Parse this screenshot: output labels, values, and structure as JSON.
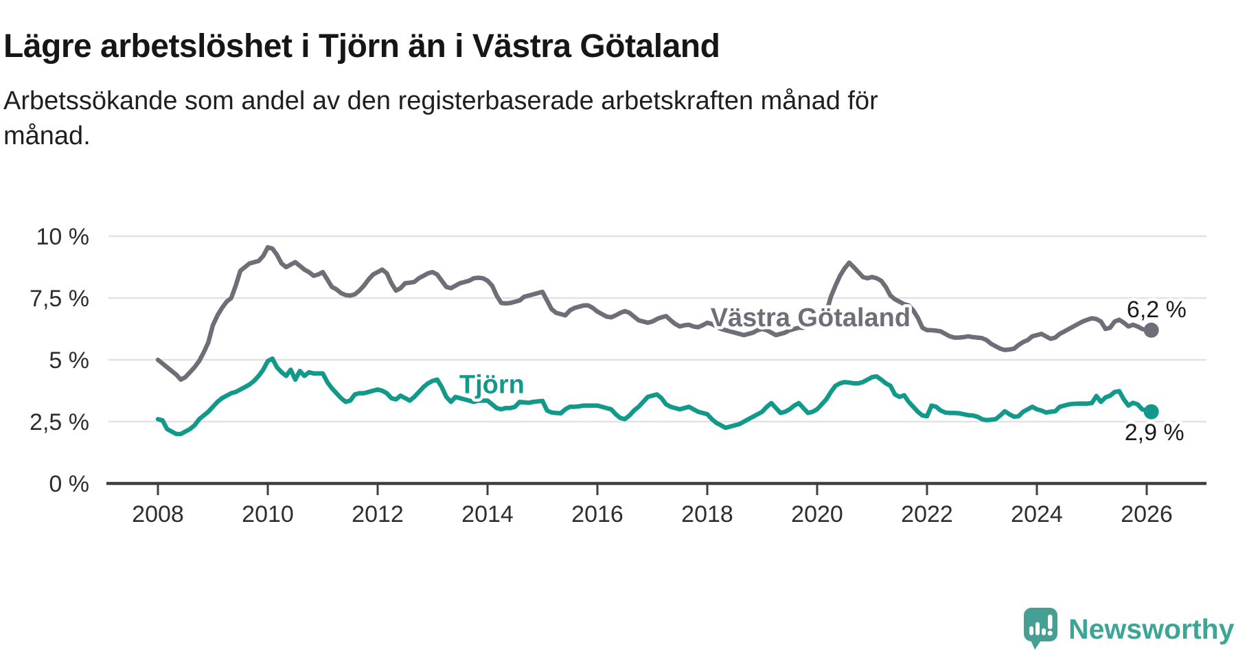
{
  "header": {
    "title": "Lägre arbetslöshet i Tjörn än i Västra Götaland",
    "subtitle_lines": [
      "Arbetssökande som andel av den registerbaserade arbetskraften månad för",
      "månad."
    ]
  },
  "branding": {
    "logo_text": "Newsworthy",
    "logo_color": "#45a093",
    "text_color": "#3ba596"
  },
  "chart_data": {
    "type": "line",
    "title": "Lägre arbetslöshet i Tjörn än i Västra Götaland",
    "x_start_year": 2008,
    "x_step": "month",
    "x_range": [
      2008.0,
      2026.17
    ],
    "ylim": [
      0,
      10
    ],
    "grid": true,
    "legend_position": "inline-labels",
    "colors": {
      "grid": "#e2e2e2",
      "axis": "#3f3f3f",
      "tick_text": "#2d2d2d"
    },
    "y_ticks": [
      {
        "v": 0,
        "label": "0 %"
      },
      {
        "v": 2.5,
        "label": "2,5 %"
      },
      {
        "v": 5,
        "label": "5 %"
      },
      {
        "v": 7.5,
        "label": "7,5 %"
      },
      {
        "v": 10,
        "label": "10 %"
      }
    ],
    "x_ticks": [
      2008,
      2010,
      2012,
      2014,
      2016,
      2018,
      2020,
      2022,
      2024,
      2026
    ],
    "series": [
      {
        "name": "Västra Götaland",
        "slug": "vastra-gotaland",
        "color": "#6e6e78",
        "end_value_label": "6,2 %",
        "values": [
          5.0,
          4.85,
          4.7,
          4.55,
          4.4,
          4.2,
          4.3,
          4.5,
          4.7,
          4.95,
          5.3,
          5.7,
          6.4,
          6.8,
          7.1,
          7.35,
          7.5,
          8.0,
          8.6,
          8.75,
          8.9,
          8.95,
          9.0,
          9.2,
          9.55,
          9.5,
          9.25,
          8.9,
          8.75,
          8.85,
          8.95,
          8.8,
          8.65,
          8.55,
          8.4,
          8.45,
          8.55,
          8.25,
          7.95,
          7.85,
          7.7,
          7.62,
          7.6,
          7.65,
          7.8,
          8.0,
          8.25,
          8.45,
          8.55,
          8.65,
          8.5,
          8.1,
          7.8,
          7.9,
          8.1,
          8.12,
          8.15,
          8.3,
          8.4,
          8.5,
          8.55,
          8.45,
          8.2,
          7.95,
          7.9,
          8.0,
          8.1,
          8.15,
          8.2,
          8.3,
          8.32,
          8.3,
          8.2,
          8.0,
          7.6,
          7.3,
          7.28,
          7.3,
          7.35,
          7.4,
          7.55,
          7.6,
          7.65,
          7.7,
          7.75,
          7.4,
          7.05,
          6.9,
          6.85,
          6.8,
          7.0,
          7.1,
          7.15,
          7.2,
          7.2,
          7.1,
          6.95,
          6.85,
          6.75,
          6.72,
          6.8,
          6.9,
          6.97,
          6.9,
          6.75,
          6.6,
          6.55,
          6.5,
          6.55,
          6.65,
          6.72,
          6.77,
          6.6,
          6.45,
          6.35,
          6.4,
          6.42,
          6.35,
          6.32,
          6.4,
          6.5,
          6.45,
          6.35,
          6.25,
          6.2,
          6.15,
          6.1,
          6.05,
          6.0,
          6.05,
          6.1,
          6.2,
          6.25,
          6.2,
          6.1,
          6.0,
          6.05,
          6.1,
          6.2,
          6.25,
          6.3,
          6.3,
          6.35,
          6.45,
          6.55,
          6.6,
          6.9,
          7.55,
          8.0,
          8.4,
          8.7,
          8.93,
          8.75,
          8.55,
          8.35,
          8.3,
          8.35,
          8.3,
          8.2,
          7.95,
          7.6,
          7.45,
          7.35,
          7.25,
          7.2,
          7.0,
          6.7,
          6.3,
          6.2,
          6.2,
          6.18,
          6.15,
          6.05,
          5.95,
          5.9,
          5.9,
          5.92,
          5.95,
          5.92,
          5.9,
          5.88,
          5.8,
          5.65,
          5.55,
          5.45,
          5.4,
          5.42,
          5.45,
          5.6,
          5.72,
          5.8,
          5.95,
          6.0,
          6.05,
          5.95,
          5.85,
          5.9,
          6.05,
          6.15,
          6.25,
          6.35,
          6.45,
          6.55,
          6.62,
          6.68,
          6.65,
          6.55,
          6.25,
          6.3,
          6.55,
          6.62,
          6.5,
          6.35,
          6.42,
          6.35,
          6.25,
          6.2,
          6.2
        ]
      },
      {
        "name": "Tjörn",
        "slug": "tjorn",
        "color": "#13998b",
        "end_value_label": "2,9 %",
        "values": [
          2.6,
          2.55,
          2.2,
          2.1,
          2.0,
          2.0,
          2.1,
          2.2,
          2.35,
          2.6,
          2.75,
          2.9,
          3.1,
          3.3,
          3.45,
          3.55,
          3.65,
          3.7,
          3.8,
          3.9,
          4.0,
          4.15,
          4.35,
          4.6,
          4.95,
          5.05,
          4.7,
          4.5,
          4.35,
          4.6,
          4.2,
          4.55,
          4.35,
          4.5,
          4.45,
          4.45,
          4.45,
          4.1,
          3.85,
          3.65,
          3.45,
          3.3,
          3.35,
          3.6,
          3.65,
          3.65,
          3.7,
          3.75,
          3.8,
          3.75,
          3.65,
          3.45,
          3.4,
          3.55,
          3.45,
          3.35,
          3.5,
          3.7,
          3.9,
          4.05,
          4.15,
          4.2,
          3.9,
          3.5,
          3.3,
          3.5,
          3.45,
          3.4,
          3.35,
          3.3,
          3.35,
          3.35,
          3.35,
          3.2,
          3.05,
          3.0,
          3.05,
          3.05,
          3.1,
          3.3,
          3.28,
          3.26,
          3.3,
          3.32,
          3.34,
          2.95,
          2.87,
          2.85,
          2.84,
          3.0,
          3.1,
          3.1,
          3.12,
          3.15,
          3.15,
          3.15,
          3.15,
          3.1,
          3.05,
          3.0,
          2.8,
          2.65,
          2.6,
          2.75,
          2.95,
          3.1,
          3.3,
          3.5,
          3.55,
          3.6,
          3.45,
          3.2,
          3.1,
          3.05,
          3.0,
          3.05,
          3.1,
          3.0,
          2.9,
          2.85,
          2.8,
          2.6,
          2.45,
          2.35,
          2.25,
          2.3,
          2.35,
          2.4,
          2.5,
          2.6,
          2.7,
          2.8,
          2.9,
          3.1,
          3.25,
          3.05,
          2.85,
          2.9,
          3.0,
          3.15,
          3.25,
          3.05,
          2.85,
          2.9,
          3.0,
          3.2,
          3.4,
          3.7,
          3.95,
          4.05,
          4.1,
          4.08,
          4.05,
          4.05,
          4.1,
          4.2,
          4.3,
          4.33,
          4.2,
          4.05,
          3.95,
          3.6,
          3.5,
          3.57,
          3.3,
          3.1,
          2.9,
          2.75,
          2.72,
          3.15,
          3.1,
          2.95,
          2.87,
          2.85,
          2.85,
          2.84,
          2.8,
          2.76,
          2.75,
          2.7,
          2.6,
          2.56,
          2.58,
          2.6,
          2.75,
          2.92,
          2.8,
          2.7,
          2.72,
          2.9,
          3.0,
          3.1,
          3.0,
          2.95,
          2.87,
          2.9,
          2.92,
          3.1,
          3.15,
          3.2,
          3.22,
          3.23,
          3.23,
          3.23,
          3.25,
          3.54,
          3.3,
          3.48,
          3.55,
          3.7,
          3.73,
          3.4,
          3.15,
          3.26,
          3.2,
          3.0,
          2.95,
          2.9
        ]
      }
    ],
    "labels": [
      {
        "name": "series-label-vastra-gotaland",
        "text": "Västra Götaland",
        "x": 2019.88,
        "y": 6.36,
        "color": "#6e6e78",
        "bold": true,
        "size": 38
      },
      {
        "name": "series-label-tjorn",
        "text": "Tjörn",
        "x": 2014.08,
        "y": 3.65,
        "color": "#13998b",
        "bold": true,
        "size": 38
      },
      {
        "name": "end-value-vastra-gotaland",
        "text": "6,2 %",
        "x": 2026.18,
        "y": 6.72,
        "color": "#1b1b1b",
        "bold": false,
        "size": 34
      },
      {
        "name": "end-value-tjorn",
        "text": "2,9 %",
        "x": 2026.14,
        "y": 1.75,
        "color": "#1b1b1b",
        "bold": false,
        "size": 34
      }
    ]
  }
}
